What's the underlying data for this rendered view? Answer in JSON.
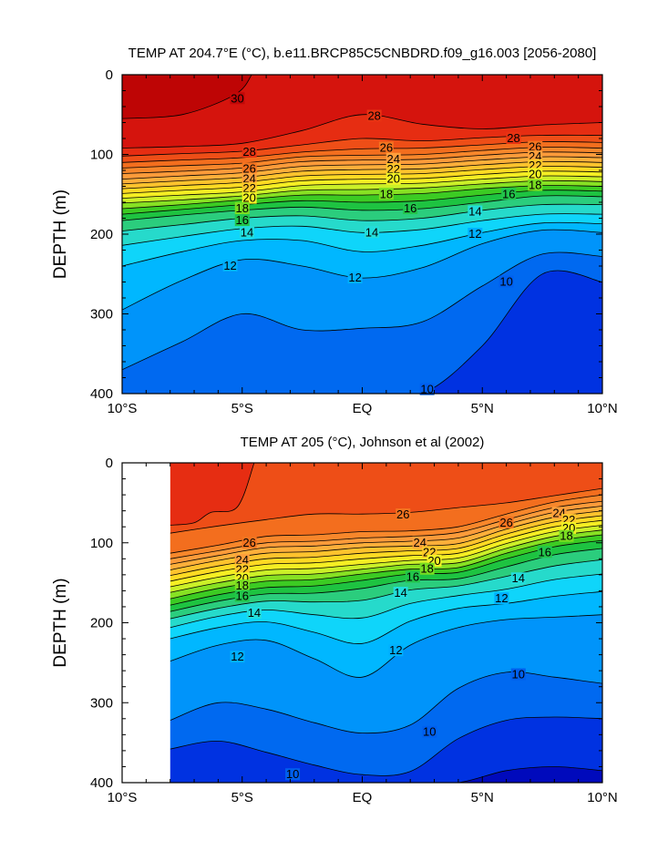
{
  "chart_data": [
    {
      "type": "contour",
      "title": "TEMP AT 204.7°E (°C), b.e11.BRCP85C5CNBDRD.f09_g16.003 [2056-2080]",
      "xlabel": "",
      "ylabel": "DEPTH (m)",
      "xlim": [
        -10,
        10
      ],
      "ylim": [
        400,
        0
      ],
      "y_axis_inverted": true,
      "x_ticks": [
        -10,
        -5,
        0,
        5,
        10
      ],
      "x_tick_labels": [
        "10°S",
        "5°S",
        "EQ",
        "5°N",
        "10°N"
      ],
      "y_ticks": [
        0,
        100,
        200,
        300,
        400
      ],
      "y_tick_labels": [
        "0",
        "100",
        "200",
        "300",
        "400"
      ],
      "data_start_lat": -10,
      "contour_interval": 1,
      "colorfill": true,
      "x": [
        -10,
        -7.5,
        -5,
        -2.5,
        0,
        2.5,
        5,
        7.5,
        10
      ],
      "isotherm_depths": [
        {
          "level": 10,
          "depths": [
            400,
            400,
            400,
            400,
            400,
            400,
            340,
            250,
            260
          ]
        },
        {
          "level": 11,
          "depths": [
            370,
            335,
            300,
            320,
            318,
            310,
            265,
            225,
            228
          ]
        },
        {
          "level": 12,
          "depths": [
            295,
            258,
            232,
            240,
            255,
            242,
            212,
            195,
            198
          ]
        },
        {
          "level": 13,
          "depths": [
            240,
            222,
            208,
            208,
            222,
            214,
            198,
            186,
            187
          ]
        },
        {
          "level": 14,
          "depths": [
            214,
            203,
            193,
            190,
            198,
            194,
            183,
            175,
            175
          ]
        },
        {
          "level": 15,
          "depths": [
            196,
            188,
            180,
            177,
            183,
            180,
            170,
            163,
            163
          ]
        },
        {
          "level": 16,
          "depths": [
            183,
            176,
            170,
            166,
            170,
            168,
            160,
            152,
            153
          ]
        },
        {
          "level": 17,
          "depths": [
            175,
            169,
            163,
            158,
            160,
            158,
            151,
            145,
            146
          ]
        },
        {
          "level": 18,
          "depths": [
            168,
            163,
            157,
            151,
            151,
            149,
            143,
            139,
            140
          ]
        },
        {
          "level": 19,
          "depths": [
            161,
            157,
            152,
            145,
            144,
            142,
            137,
            133,
            134
          ]
        },
        {
          "level": 20,
          "depths": [
            155,
            151,
            147,
            139,
            137,
            136,
            131,
            127,
            128
          ]
        },
        {
          "level": 21,
          "depths": [
            149,
            145,
            141,
            133,
            131,
            130,
            125,
            121,
            122
          ]
        },
        {
          "level": 22,
          "depths": [
            143,
            139,
            135,
            127,
            125,
            124,
            119,
            115,
            116
          ]
        },
        {
          "level": 23,
          "depths": [
            137,
            133,
            129,
            121,
            119,
            118,
            113,
            109,
            110
          ]
        },
        {
          "level": 24,
          "depths": [
            131,
            127,
            123,
            115,
            113,
            112,
            107,
            103,
            104
          ]
        },
        {
          "level": 25,
          "depths": [
            124,
            121,
            117,
            109,
            107,
            106,
            101,
            97,
            98
          ]
        },
        {
          "level": 26,
          "depths": [
            117,
            114,
            111,
            103,
            101,
            100,
            95,
            91,
            92
          ]
        },
        {
          "level": 27,
          "depths": [
            110,
            107,
            104,
            97,
            93,
            92,
            88,
            84,
            85
          ]
        },
        {
          "level": 28,
          "depths": [
            102,
            99,
            96,
            88,
            80,
            83,
            79,
            76,
            76
          ]
        },
        {
          "level": 29,
          "depths": [
            92,
            90,
            86,
            70,
            50,
            62,
            68,
            63,
            60
          ]
        }
      ],
      "warm_pool_30C": [
        {
          "lat": -10,
          "depth": 55
        },
        {
          "lat": -7.5,
          "depth": 50
        },
        {
          "lat": -5.3,
          "depth": 25
        },
        {
          "lat": -4.6,
          "depth": 0
        }
      ],
      "contour_labels": [
        {
          "text": "30",
          "lat": -5.2,
          "depth": 30
        },
        {
          "text": "28",
          "lat": -4.7,
          "depth": 97
        },
        {
          "text": "26",
          "lat": -4.7,
          "depth": 118
        },
        {
          "text": "24",
          "lat": -4.7,
          "depth": 131
        },
        {
          "text": "22",
          "lat": -4.7,
          "depth": 143
        },
        {
          "text": "20",
          "lat": -4.7,
          "depth": 155
        },
        {
          "text": "18",
          "lat": -5.0,
          "depth": 168
        },
        {
          "text": "16",
          "lat": -5.0,
          "depth": 183
        },
        {
          "text": "14",
          "lat": -4.8,
          "depth": 198
        },
        {
          "text": "12",
          "lat": -5.5,
          "depth": 240
        },
        {
          "text": "28",
          "lat": 0.5,
          "depth": 52
        },
        {
          "text": "26",
          "lat": 1.0,
          "depth": 92
        },
        {
          "text": "24",
          "lat": 1.3,
          "depth": 106
        },
        {
          "text": "22",
          "lat": 1.3,
          "depth": 119
        },
        {
          "text": "20",
          "lat": 1.3,
          "depth": 131
        },
        {
          "text": "18",
          "lat": 1.0,
          "depth": 150
        },
        {
          "text": "16",
          "lat": 2.0,
          "depth": 168
        },
        {
          "text": "14",
          "lat": 0.4,
          "depth": 198
        },
        {
          "text": "12",
          "lat": -0.3,
          "depth": 255
        },
        {
          "text": "28",
          "lat": 6.3,
          "depth": 80
        },
        {
          "text": "26",
          "lat": 7.2,
          "depth": 91
        },
        {
          "text": "24",
          "lat": 7.2,
          "depth": 103
        },
        {
          "text": "22",
          "lat": 7.2,
          "depth": 114
        },
        {
          "text": "20",
          "lat": 7.2,
          "depth": 125
        },
        {
          "text": "18",
          "lat": 7.2,
          "depth": 139
        },
        {
          "text": "16",
          "lat": 6.1,
          "depth": 150
        },
        {
          "text": "14",
          "lat": 4.7,
          "depth": 172
        },
        {
          "text": "12",
          "lat": 4.7,
          "depth": 200
        },
        {
          "text": "10",
          "lat": 6.0,
          "depth": 260
        },
        {
          "text": "10",
          "lat": 2.7,
          "depth": 395
        }
      ]
    },
    {
      "type": "contour",
      "title": "TEMP AT 205 (°C), Johnson et al (2002)",
      "xlabel": "",
      "ylabel": "DEPTH (m)",
      "xlim": [
        -10,
        10
      ],
      "ylim": [
        400,
        0
      ],
      "y_axis_inverted": true,
      "x_ticks": [
        -10,
        -5,
        0,
        5,
        10
      ],
      "x_tick_labels": [
        "10°S",
        "5°S",
        "EQ",
        "5°N",
        "10°N"
      ],
      "y_ticks": [
        0,
        100,
        200,
        300,
        400
      ],
      "y_tick_labels": [
        "0",
        "100",
        "200",
        "300",
        "400"
      ],
      "data_start_lat": -8,
      "contour_interval": 1,
      "colorfill": true,
      "x": [
        -8,
        -6,
        -4,
        -2,
        0,
        2,
        4,
        6,
        8,
        10
      ],
      "isotherm_depths": [
        {
          "level": 9,
          "depths": [
            400,
            400,
            400,
            400,
            400,
            400,
            400,
            385,
            380,
            385
          ]
        },
        {
          "level": 10,
          "depths": [
            358,
            348,
            362,
            378,
            390,
            386,
            345,
            322,
            318,
            320
          ]
        },
        {
          "level": 11,
          "depths": [
            322,
            300,
            308,
            325,
            338,
            328,
            282,
            262,
            268,
            276
          ]
        },
        {
          "level": 12,
          "depths": [
            248,
            228,
            222,
            245,
            268,
            228,
            206,
            196,
            193,
            190
          ]
        },
        {
          "level": 13,
          "depths": [
            220,
            206,
            199,
            212,
            226,
            198,
            182,
            176,
            167,
            161
          ]
        },
        {
          "level": 14,
          "depths": [
            206,
            192,
            184,
            190,
            194,
            176,
            166,
            158,
            146,
            139
          ]
        },
        {
          "level": 15,
          "depths": [
            195,
            182,
            173,
            174,
            172,
            159,
            154,
            142,
            129,
            121
          ]
        },
        {
          "level": 16,
          "depths": [
            186,
            173,
            164,
            163,
            157,
            147,
            145,
            130,
            115,
            107
          ]
        },
        {
          "level": 17,
          "depths": [
            178,
            165,
            156,
            154,
            147,
            139,
            137,
            120,
            105,
            97
          ]
        },
        {
          "level": 18,
          "depths": [
            170,
            157,
            148,
            146,
            139,
            133,
            131,
            113,
            98,
            90
          ]
        },
        {
          "level": 19,
          "depths": [
            162,
            150,
            141,
            139,
            133,
            127,
            125,
            107,
            92,
            84
          ]
        },
        {
          "level": 20,
          "depths": [
            155,
            143,
            134,
            132,
            127,
            122,
            119,
            101,
            86,
            78
          ]
        },
        {
          "level": 21,
          "depths": [
            148,
            136,
            127,
            125,
            120,
            116,
            113,
            95,
            80,
            72
          ]
        },
        {
          "level": 22,
          "depths": [
            141,
            129,
            120,
            118,
            113,
            110,
            107,
            89,
            74,
            66
          ]
        },
        {
          "level": 23,
          "depths": [
            134,
            122,
            113,
            111,
            106,
            104,
            101,
            83,
            68,
            60
          ]
        },
        {
          "level": 24,
          "depths": [
            127,
            116,
            106,
            104,
            100,
            98,
            94,
            77,
            62,
            54
          ]
        },
        {
          "level": 25,
          "depths": [
            120,
            110,
            100,
            98,
            94,
            92,
            87,
            71,
            56,
            48
          ]
        },
        {
          "level": 26,
          "depths": [
            113,
            103,
            92,
            90,
            86,
            85,
            80,
            64,
            49,
            40
          ]
        },
        {
          "level": 27,
          "depths": [
            88,
            79,
            71,
            64,
            64,
            62,
            56,
            50,
            41,
            32
          ]
        }
      ],
      "warm_pool_28C": [
        {
          "lat": -8,
          "depth": 78
        },
        {
          "lat": -7,
          "depth": 75
        },
        {
          "lat": -6.3,
          "depth": 62
        },
        {
          "lat": -5.2,
          "depth": 55
        },
        {
          "lat": -4.5,
          "depth": 0
        }
      ],
      "contour_labels": [
        {
          "text": "26",
          "lat": -4.7,
          "depth": 100
        },
        {
          "text": "24",
          "lat": -5.0,
          "depth": 122
        },
        {
          "text": "22",
          "lat": -5.0,
          "depth": 134
        },
        {
          "text": "20",
          "lat": -5.0,
          "depth": 145
        },
        {
          "text": "18",
          "lat": -5.0,
          "depth": 154
        },
        {
          "text": "16",
          "lat": -5.0,
          "depth": 167
        },
        {
          "text": "14",
          "lat": -4.5,
          "depth": 188
        },
        {
          "text": "12",
          "lat": -5.2,
          "depth": 243
        },
        {
          "text": "10",
          "lat": -2.9,
          "depth": 390
        },
        {
          "text": "26",
          "lat": 1.7,
          "depth": 65
        },
        {
          "text": "24",
          "lat": 2.4,
          "depth": 100
        },
        {
          "text": "22",
          "lat": 2.8,
          "depth": 112
        },
        {
          "text": "20",
          "lat": 3.0,
          "depth": 123
        },
        {
          "text": "18",
          "lat": 2.7,
          "depth": 133
        },
        {
          "text": "16",
          "lat": 2.1,
          "depth": 143
        },
        {
          "text": "14",
          "lat": 1.6,
          "depth": 163
        },
        {
          "text": "12",
          "lat": 1.4,
          "depth": 235
        },
        {
          "text": "10",
          "lat": 2.8,
          "depth": 337
        },
        {
          "text": "26",
          "lat": 6.0,
          "depth": 75
        },
        {
          "text": "24",
          "lat": 8.2,
          "depth": 63
        },
        {
          "text": "22",
          "lat": 8.6,
          "depth": 72
        },
        {
          "text": "20",
          "lat": 8.6,
          "depth": 82
        },
        {
          "text": "18",
          "lat": 8.5,
          "depth": 92
        },
        {
          "text": "16",
          "lat": 7.6,
          "depth": 112
        },
        {
          "text": "14",
          "lat": 6.5,
          "depth": 145
        },
        {
          "text": "12",
          "lat": 5.8,
          "depth": 170
        },
        {
          "text": "10",
          "lat": 6.5,
          "depth": 265
        }
      ]
    }
  ]
}
